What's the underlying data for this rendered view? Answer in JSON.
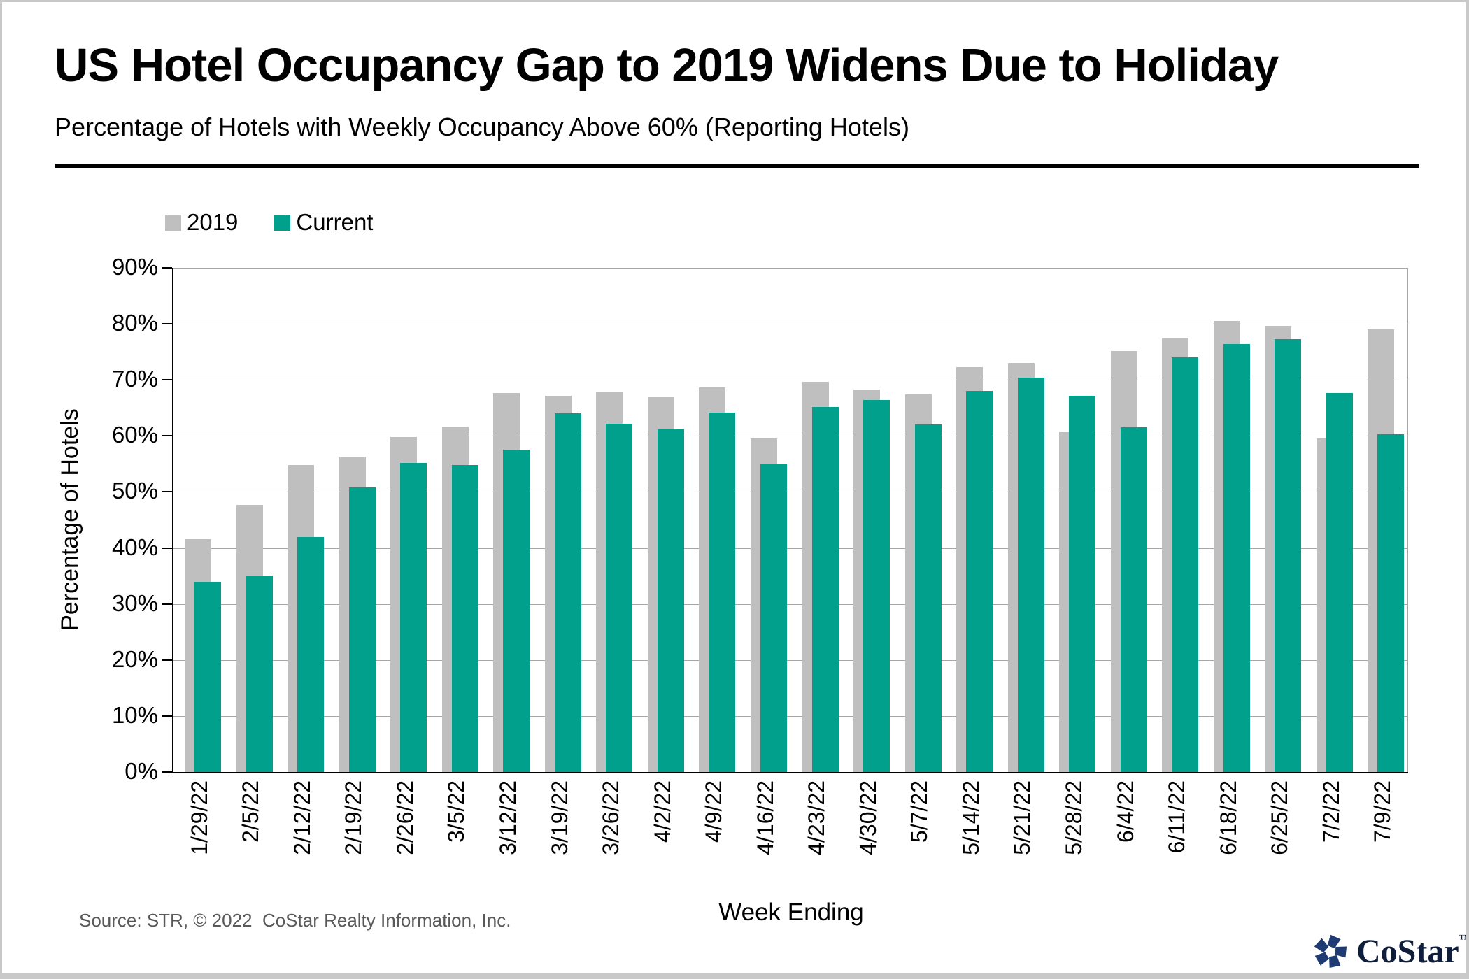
{
  "header": {
    "title": "US Hotel Occupancy Gap to 2019 Widens Due to Holiday",
    "subtitle": "Percentage of Hotels with Weekly Occupancy Above 60% (Reporting Hotels)"
  },
  "chart_data": {
    "type": "bar",
    "title": "US Hotel Occupancy Gap to 2019 Widens Due to Holiday",
    "subtitle": "Percentage of Hotels with Weekly Occupancy Above 60% (Reporting Hotels)",
    "categories": [
      "1/29/22",
      "2/5/22",
      "2/12/22",
      "2/19/22",
      "2/26/22",
      "3/5/22",
      "3/12/22",
      "3/19/22",
      "3/26/22",
      "4/2/22",
      "4/9/22",
      "4/16/22",
      "4/23/22",
      "4/30/22",
      "5/7/22",
      "5/14/22",
      "5/21/22",
      "5/28/22",
      "6/4/22",
      "6/11/22",
      "6/18/22",
      "6/25/22",
      "7/2/22",
      "7/9/22"
    ],
    "series": [
      {
        "name": "2019",
        "color": "#BFBFBF",
        "values": [
          41.6,
          47.7,
          54.8,
          56.2,
          59.8,
          61.7,
          67.6,
          67.1,
          67.9,
          66.9,
          68.7,
          59.6,
          69.7,
          68.3,
          67.4,
          72.3,
          73.0,
          60.7,
          75.1,
          77.5,
          80.5,
          79.6,
          59.6,
          79.0
        ]
      },
      {
        "name": "Current",
        "color": "#00A08C",
        "values": [
          34.0,
          35.1,
          42.0,
          50.8,
          55.2,
          54.8,
          57.5,
          64.0,
          62.2,
          61.2,
          64.2,
          54.9,
          65.2,
          66.4,
          62.0,
          68.0,
          70.4,
          67.1,
          61.5,
          74.0,
          76.4,
          77.3,
          67.6,
          60.3
        ]
      }
    ],
    "xlabel": "Week Ending",
    "ylabel": "Percentage of Hotels",
    "ylim": [
      0,
      90
    ],
    "ytick_step": 10,
    "ytick_labels": [
      "90%",
      "80%",
      "70%",
      "60%",
      "50%",
      "40%",
      "30%",
      "20%",
      "10%",
      "0%"
    ],
    "grid": true,
    "gridline_color": "#A6A6A6",
    "axis_color": "#000000",
    "legend_position": "top-left"
  },
  "footer": {
    "source": "Source: STR, © 2022  CoStar Realty Information, Inc.",
    "logo": {
      "text": "CoStar",
      "tm": "™",
      "star_color": "#1F3B73",
      "text_color": "#0F1E3B"
    }
  }
}
